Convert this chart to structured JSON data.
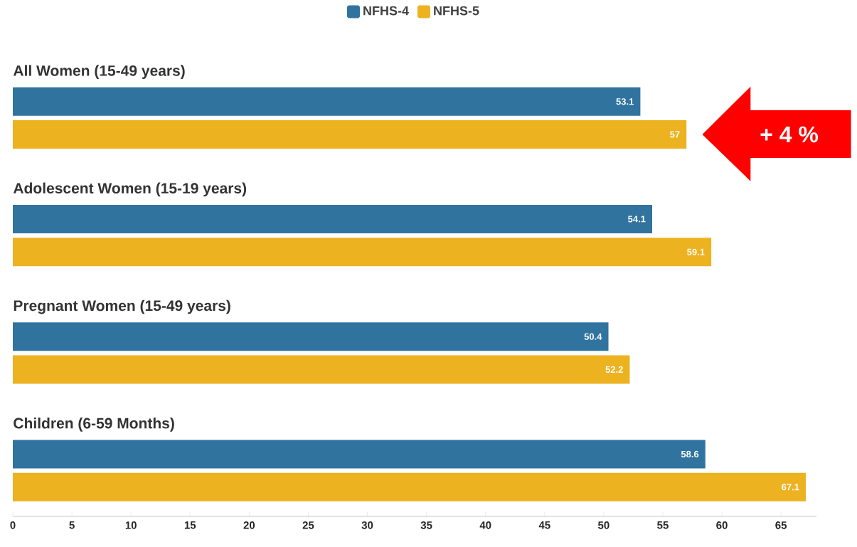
{
  "chart_data": {
    "type": "bar",
    "orientation": "horizontal",
    "categories": [
      "All Women (15-49 years)",
      "Adolescent Women (15-19 years)",
      "Pregnant Women (15-49 years)",
      "Children (6-59 Months)"
    ],
    "series": [
      {
        "name": "NFHS-4",
        "color": "#31739f",
        "values": [
          53.1,
          54.1,
          50.4,
          58.6
        ]
      },
      {
        "name": "NFHS-5",
        "color": "#ecb220",
        "values": [
          57,
          59.1,
          52.2,
          67.1
        ]
      }
    ],
    "xlim": [
      0,
      68
    ],
    "xticks": [
      0,
      5,
      10,
      15,
      20,
      25,
      30,
      35,
      40,
      45,
      50,
      55,
      60,
      65
    ],
    "data_labels": true,
    "legend": "top",
    "grid": false,
    "annotations": [
      "+ 4 %"
    ]
  }
}
